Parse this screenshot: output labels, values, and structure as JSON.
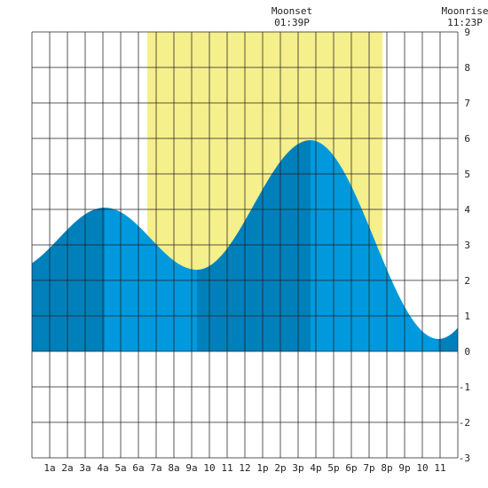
{
  "header": {
    "moonset_title": "Moonset",
    "moonset_time": "01:39P",
    "moonrise_title": "Moonrise",
    "moonrise_time": "11:23P"
  },
  "chart_data": {
    "type": "area",
    "title": "",
    "xlabel": "",
    "ylabel": "",
    "x_range_hours": [
      0,
      24
    ],
    "ylim": [
      -3,
      9
    ],
    "grid": true,
    "x_tick_labels": [
      "1a",
      "2a",
      "3a",
      "4a",
      "5a",
      "6a",
      "7a",
      "8a",
      "9a",
      "10",
      "11",
      "12",
      "1p",
      "2p",
      "3p",
      "4p",
      "5p",
      "6p",
      "7p",
      "8p",
      "9p",
      "10",
      "11"
    ],
    "y_tick_labels": [
      "-3",
      "-2",
      "-1",
      "0",
      "1",
      "2",
      "3",
      "4",
      "5",
      "6",
      "7",
      "8",
      "9"
    ],
    "daylight_hours": [
      6.5,
      19.75
    ],
    "tide_extremes": [
      {
        "hour": 4.1,
        "height": 4.05,
        "kind": "high"
      },
      {
        "hour": 9.3,
        "height": 2.3,
        "kind": "low"
      },
      {
        "hour": 15.7,
        "height": 5.95,
        "kind": "high"
      },
      {
        "hour": 22.9,
        "height": 0.35,
        "kind": "low"
      }
    ],
    "curve_start": {
      "hour": 0,
      "height": 1.6
    },
    "curve_end": {
      "hour": 24,
      "height": 0.6
    },
    "colors": {
      "daylight": "#f5ef8c",
      "tide_light": "#0099dd",
      "tide_dark": "#0080bb",
      "grid": "#222222"
    }
  }
}
